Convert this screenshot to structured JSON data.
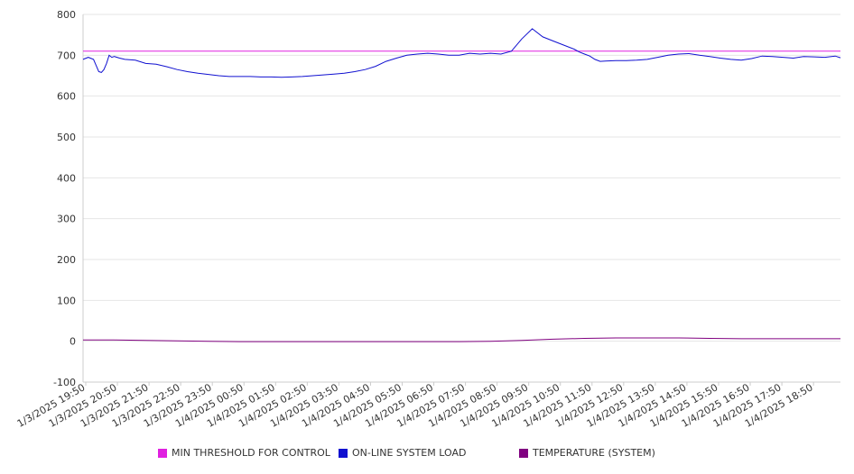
{
  "chart_data": {
    "type": "line",
    "ylim": [
      -100,
      800
    ],
    "yticks": [
      -100,
      0,
      100,
      200,
      300,
      400,
      500,
      600,
      700,
      800
    ],
    "xlim": [
      0,
      1450
    ],
    "xtick_labels": [
      "1/3/2025 19:50",
      "1/3/2025 20:50",
      "1/3/2025 21:50",
      "1/3/2025 22:50",
      "1/3/2025 23:50",
      "1/4/2025 00:50",
      "1/4/2025 01:50",
      "1/4/2025 02:50",
      "1/4/2025 03:50",
      "1/4/2025 04:50",
      "1/4/2025 05:50",
      "1/4/2025 06:50",
      "1/4/2025 07:50",
      "1/4/2025 08:50",
      "1/4/2025 09:50",
      "1/4/2025 10:50",
      "1/4/2025 11:50",
      "1/4/2025 12:50",
      "1/4/2025 13:50",
      "1/4/2025 14:50",
      "1/4/2025 15:50",
      "1/4/2025 16:50",
      "1/4/2025 17:50",
      "1/4/2025 18:50"
    ],
    "grid": true,
    "legend_position": "bottom",
    "series": [
      {
        "name": "MIN THRESHOLD FOR CONTROL",
        "color": "#e020e0",
        "x": [
          0,
          1450
        ],
        "y": [
          710,
          710
        ]
      },
      {
        "name": "ON-LINE SYSTEM LOAD",
        "color": "#1010d0",
        "x": [
          0,
          10,
          20,
          25,
          30,
          35,
          40,
          45,
          50,
          55,
          60,
          70,
          80,
          100,
          120,
          140,
          160,
          180,
          200,
          220,
          240,
          260,
          280,
          300,
          320,
          340,
          360,
          380,
          400,
          420,
          440,
          460,
          480,
          500,
          520,
          540,
          560,
          580,
          600,
          620,
          640,
          660,
          680,
          700,
          720,
          740,
          760,
          780,
          800,
          820,
          840,
          860,
          880,
          900,
          920,
          940,
          950,
          960,
          970,
          980,
          990,
          1000,
          1020,
          1040,
          1060,
          1080,
          1100,
          1120,
          1140,
          1160,
          1180,
          1200,
          1220,
          1240,
          1260,
          1280,
          1300,
          1320,
          1340,
          1360,
          1380,
          1400,
          1420,
          1440,
          1450
        ],
        "y": [
          690,
          695,
          690,
          675,
          660,
          658,
          665,
          680,
          700,
          695,
          697,
          693,
          690,
          688,
          680,
          678,
          672,
          665,
          660,
          656,
          653,
          650,
          648,
          648,
          648,
          647,
          647,
          646,
          647,
          648,
          650,
          652,
          654,
          656,
          660,
          665,
          673,
          685,
          693,
          700,
          703,
          705,
          703,
          700,
          700,
          705,
          703,
          705,
          703,
          710,
          740,
          765,
          745,
          735,
          725,
          715,
          708,
          703,
          698,
          690,
          685,
          686,
          687,
          687,
          688,
          690,
          695,
          700,
          703,
          704,
          700,
          697,
          693,
          690,
          688,
          692,
          698,
          697,
          695,
          693,
          697,
          696,
          695,
          698,
          694
        ]
      },
      {
        "name": "TEMPERATURE (SYSTEM)",
        "color": "#800080",
        "x": [
          0,
          60,
          120,
          180,
          240,
          300,
          360,
          420,
          480,
          540,
          600,
          660,
          720,
          780,
          840,
          900,
          960,
          1020,
          1080,
          1140,
          1200,
          1260,
          1320,
          1380,
          1450
        ],
        "y": [
          3,
          3,
          2,
          1,
          0,
          -1,
          -1,
          -1,
          -1,
          -1,
          -1,
          -1,
          -1,
          0,
          2,
          5,
          7,
          8,
          8,
          8,
          7,
          6,
          6,
          6,
          6
        ]
      }
    ]
  }
}
